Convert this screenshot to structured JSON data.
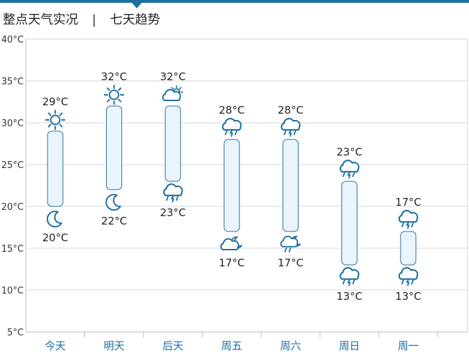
{
  "header": {
    "tabs": [
      {
        "label": "整点天气实况",
        "active": false
      },
      {
        "label": "七天趋势",
        "active": true
      }
    ],
    "separator": "|"
  },
  "colors": {
    "accent": "#1a6fa3",
    "bar_fill": "#eaf4fc",
    "bar_stroke": "#2b6f9e",
    "grid": "#d6d6d6",
    "axis_text": "#333333",
    "day_label": "#1a6fa3",
    "icon": "#1a6fa3"
  },
  "chart_data": {
    "type": "bar",
    "subtype": "range",
    "ylim": [
      5,
      40
    ],
    "yticks": [
      {
        "value": 40,
        "label": "40°C"
      },
      {
        "value": 35,
        "label": "35°C"
      },
      {
        "value": 30,
        "label": "30°C"
      },
      {
        "value": 25,
        "label": "25°C"
      },
      {
        "value": 20,
        "label": "20°C"
      },
      {
        "value": 15,
        "label": "15°C"
      },
      {
        "value": 10,
        "label": "10°C"
      },
      {
        "value": 5,
        "label": "5°C"
      }
    ],
    "grid": true,
    "days": [
      {
        "label": "今天",
        "high": 29,
        "low": 20,
        "high_label": "29°C",
        "low_label": "20°C",
        "day_icon": "sun-icon",
        "night_icon": "moon-icon"
      },
      {
        "label": "明天",
        "high": 32,
        "low": 22,
        "high_label": "32°C",
        "low_label": "22°C",
        "day_icon": "sun-icon",
        "night_icon": "moon-icon"
      },
      {
        "label": "后天",
        "high": 32,
        "low": 23,
        "high_label": "32°C",
        "low_label": "23°C",
        "day_icon": "partly-cloudy-day-icon",
        "night_icon": "thunder-rain-icon"
      },
      {
        "label": "周五",
        "high": 28,
        "low": 17,
        "high_label": "28°C",
        "low_label": "17°C",
        "day_icon": "thunder-rain-icon",
        "night_icon": "partly-cloudy-night-icon"
      },
      {
        "label": "周六",
        "high": 28,
        "low": 17,
        "high_label": "28°C",
        "low_label": "17°C",
        "day_icon": "thunder-rain-icon",
        "night_icon": "night-shower-icon"
      },
      {
        "label": "周日",
        "high": 23,
        "low": 13,
        "high_label": "23°C",
        "low_label": "13°C",
        "day_icon": "thunder-rain-icon",
        "night_icon": "thunder-rain-icon"
      },
      {
        "label": "周一",
        "high": 17,
        "low": 13,
        "high_label": "17°C",
        "low_label": "13°C",
        "day_icon": "thunder-rain-icon",
        "night_icon": "thunder-rain-icon"
      }
    ]
  }
}
